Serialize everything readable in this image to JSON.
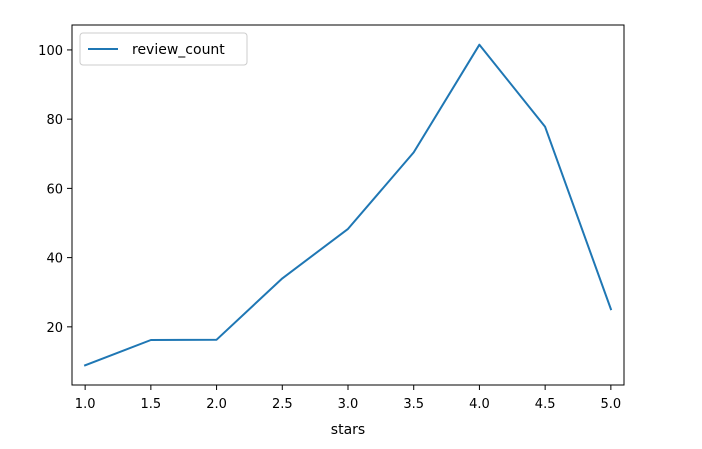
{
  "chart_data": {
    "type": "line",
    "x": [
      1.0,
      1.5,
      2.0,
      2.5,
      3.0,
      3.5,
      4.0,
      4.5,
      5.0
    ],
    "series": [
      {
        "name": "review_count",
        "color": "#1f77b4",
        "values": [
          8.9,
          16.2,
          16.3,
          34.0,
          48.3,
          70.4,
          101.5,
          77.8,
          25.1
        ]
      }
    ],
    "xlabel": "stars",
    "ylabel": "",
    "title": "",
    "xlim": [
      0.9,
      5.1
    ],
    "ylim": [
      3.2,
      107.2
    ],
    "xticks": [
      1.0,
      1.5,
      2.0,
      2.5,
      3.0,
      3.5,
      4.0,
      4.5,
      5.0
    ],
    "xtick_labels": [
      "1.0",
      "1.5",
      "2.0",
      "2.5",
      "3.0",
      "3.5",
      "4.0",
      "4.5",
      "5.0"
    ],
    "yticks": [
      20,
      40,
      60,
      80,
      100
    ],
    "ytick_labels": [
      "20",
      "40",
      "60",
      "80",
      "100"
    ],
    "grid": false,
    "legend_position": "upper-left"
  }
}
